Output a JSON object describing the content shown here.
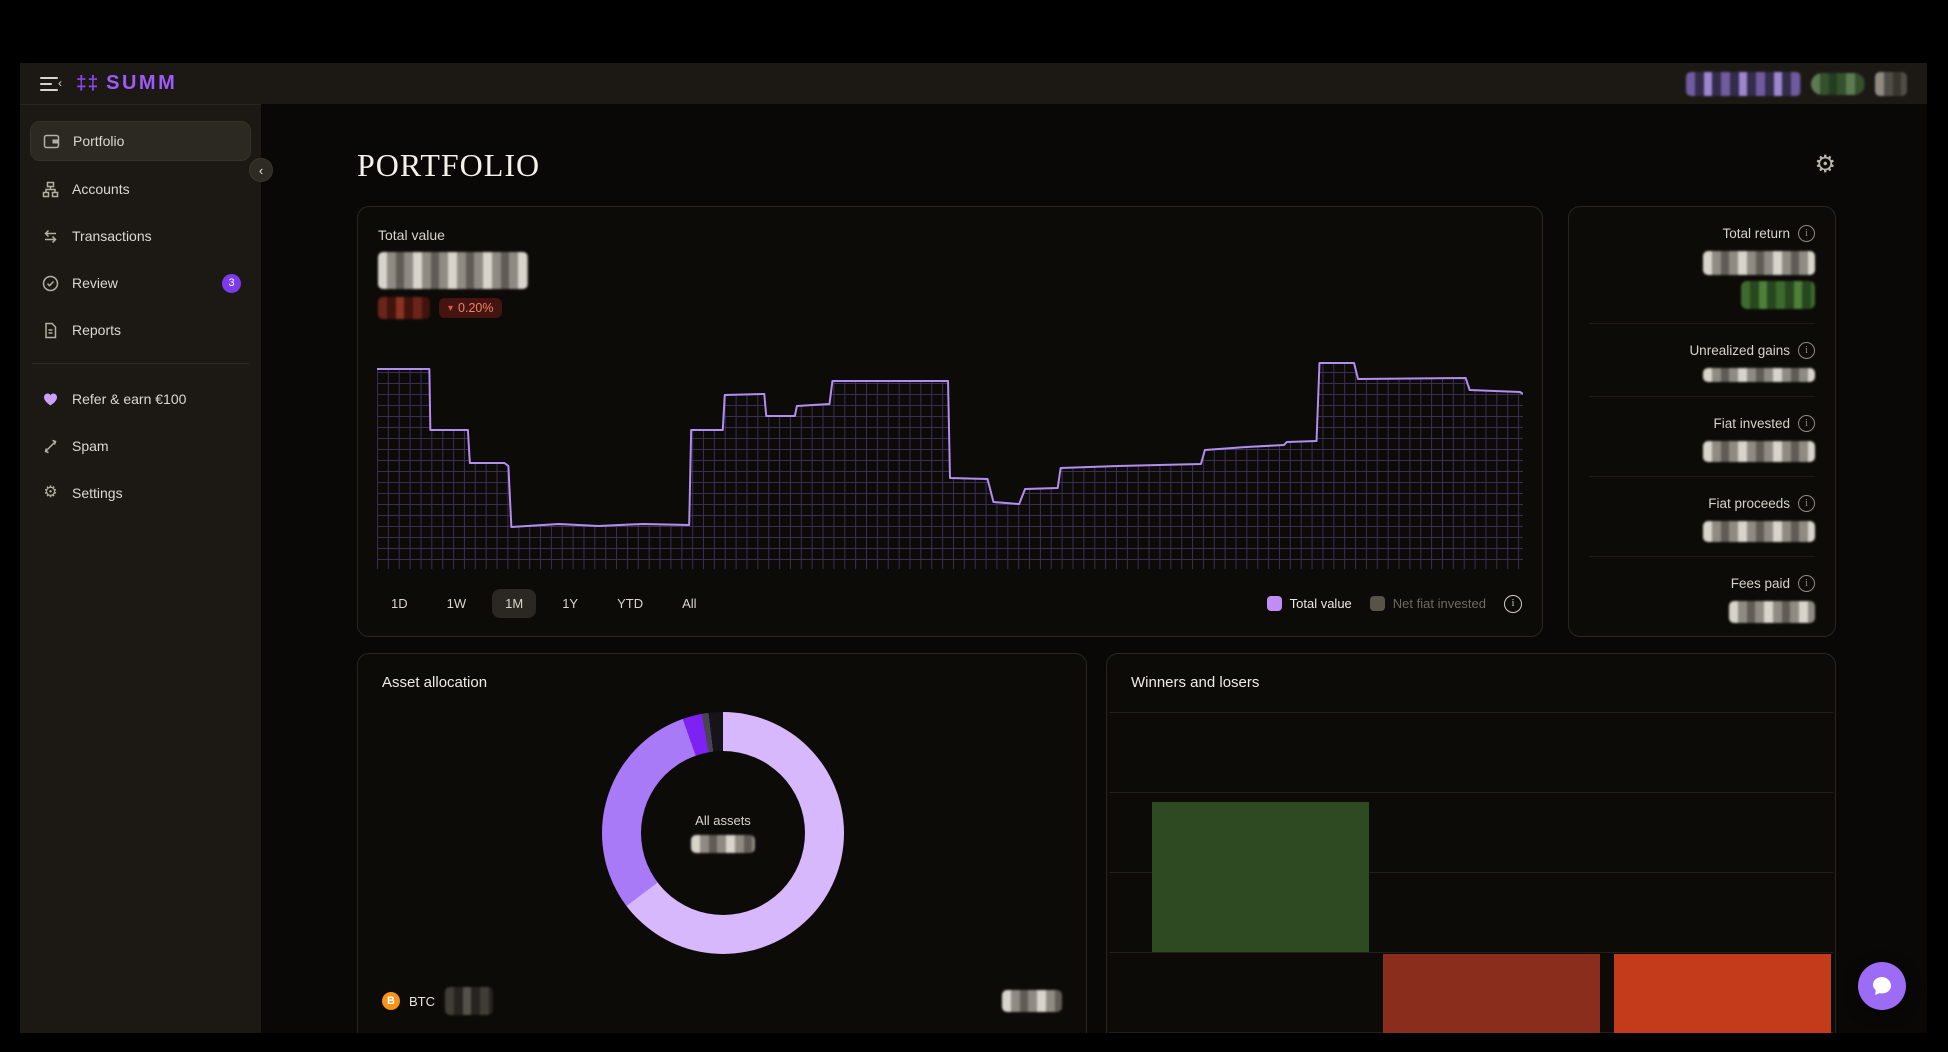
{
  "app": {
    "logo_sparkle": "‡‡",
    "logo_text": "SUMM"
  },
  "header": {
    "redacted_chips": [
      {
        "name": "account-selector",
        "style": "purple"
      },
      {
        "name": "status-green",
        "style": "green"
      },
      {
        "name": "user-avatar",
        "style": "gray"
      }
    ]
  },
  "sidebar": {
    "items": [
      {
        "label": "Portfolio",
        "icon": "portfolio-icon",
        "active": true
      },
      {
        "label": "Accounts",
        "icon": "accounts-icon"
      },
      {
        "label": "Transactions",
        "icon": "transactions-icon"
      },
      {
        "label": "Review",
        "icon": "review-icon",
        "badge": "3"
      },
      {
        "label": "Reports",
        "icon": "reports-icon"
      }
    ],
    "secondary": [
      {
        "label": "Refer & earn €100",
        "icon": "heart-icon"
      },
      {
        "label": "Spam",
        "icon": "spam-icon"
      },
      {
        "label": "Settings",
        "icon": "settings-icon"
      }
    ]
  },
  "page": {
    "title": "PORTFOLIO"
  },
  "total_value_card": {
    "label": "Total value",
    "value_redacted": true,
    "change_badge": {
      "direction": "down",
      "triangle": "▾",
      "text": "0.20%"
    },
    "time_ranges": [
      "1D",
      "1W",
      "1M",
      "1Y",
      "YTD",
      "All"
    ],
    "active_range": "1M",
    "legend": [
      {
        "label": "Total value",
        "color": "#c18cf7",
        "active": true
      },
      {
        "label": "Net fiat invested",
        "color": "#57534b",
        "active": false
      }
    ]
  },
  "stats_panel": {
    "rows": [
      {
        "label": "Total return",
        "value_redacted": true,
        "badge_redacted": "green"
      },
      {
        "label": "Unrealized gains",
        "value_redacted": true
      },
      {
        "label": "Fiat invested",
        "value_redacted": true
      },
      {
        "label": "Fiat proceeds",
        "value_redacted": true
      },
      {
        "label": "Fees paid",
        "value_redacted": true
      }
    ]
  },
  "allocation_card": {
    "title": "Asset allocation",
    "center_label": "All assets",
    "center_value_redacted": true,
    "assets": [
      {
        "symbol": "BTC",
        "icon": "bitcoin-icon",
        "icon_color": "#f7931a",
        "amount_redacted": true,
        "value_redacted": true
      },
      {
        "symbol": "",
        "icon": "ethereum-icon",
        "icon_color": "#627eea",
        "amount_redacted": true
      }
    ]
  },
  "winners_card": {
    "title": "Winners and losers"
  },
  "chart_data": [
    {
      "id": "total-value-trend",
      "type": "area",
      "title": "Total value",
      "selected_range": "1M",
      "grid": "purple mesh under curve",
      "axis_labels_visible": false,
      "note": "y values redacted on screen; points are step-line geometry in a 1160x208 viewport, y increases downward",
      "series": [
        {
          "name": "Total value",
          "line_color": "#b18ff0",
          "mesh_color": "#6a4f9e",
          "points": [
            [
              0,
              8
            ],
            [
              53,
              8
            ],
            [
              54,
              69
            ],
            [
              92,
              69
            ],
            [
              94,
              102
            ],
            [
              129,
              102
            ],
            [
              133,
              105
            ],
            [
              136,
              166
            ],
            [
              184,
              163
            ],
            [
              224,
              165
            ],
            [
              269,
              163
            ],
            [
              316,
              164
            ],
            [
              318,
              69
            ],
            [
              350,
              69
            ],
            [
              352,
              34
            ],
            [
              392,
              33
            ],
            [
              394,
              55
            ],
            [
              423,
              55
            ],
            [
              425,
              45
            ],
            [
              458,
              43
            ],
            [
              461,
              20
            ],
            [
              578,
              20
            ],
            [
              580,
              117
            ],
            [
              618,
              118
            ],
            [
              624,
              141
            ],
            [
              650,
              143
            ],
            [
              656,
              128
            ],
            [
              689,
              127
            ],
            [
              692,
              107
            ],
            [
              750,
              105
            ],
            [
              834,
              103
            ],
            [
              838,
              89
            ],
            [
              880,
              86
            ],
            [
              918,
              84
            ],
            [
              921,
              81
            ],
            [
              951,
              80
            ],
            [
              954,
              2
            ],
            [
              989,
              2
            ],
            [
              993,
              18
            ],
            [
              1102,
              17
            ],
            [
              1106,
              29
            ],
            [
              1157,
              31
            ],
            [
              1160,
              33
            ]
          ]
        }
      ]
    },
    {
      "id": "asset-allocation",
      "type": "pie",
      "title": "Asset allocation",
      "center_label": "All assets",
      "start_angle_deg": -4,
      "segments": [
        {
          "name": "segment-1",
          "color": "#d7b8fc",
          "pct": 65.8
        },
        {
          "name": "segment-2",
          "color": "#a97af8",
          "pct": 29.9
        },
        {
          "name": "segment-3",
          "color": "#7d22f2",
          "pct": 2.6
        },
        {
          "name": "segment-4",
          "color": "#494352",
          "pct": 0.9
        },
        {
          "name": "segment-5",
          "color": "#16131a",
          "pct": 0.8
        }
      ]
    },
    {
      "id": "winners-losers",
      "type": "bar",
      "title": "Winners and losers",
      "gridlines": 5,
      "unit": "gridline-steps",
      "labels_visible": false,
      "note": "category/value labels are cropped out of the visible viewport; negative bars extend below the fold",
      "bars": [
        {
          "name": "winner-1",
          "color": "#2e4a23",
          "value": 1.88
        },
        {
          "name": "loser-1",
          "color": "#8a2d1c",
          "value": -1.5
        },
        {
          "name": "loser-2",
          "color": "#c43b1c",
          "value": -1.5
        }
      ]
    }
  ]
}
